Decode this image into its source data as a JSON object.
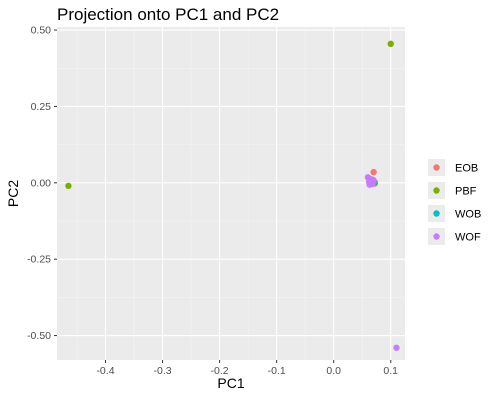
{
  "chart_data": {
    "type": "scatter",
    "title": "Projection onto PC1 and PC2",
    "xlabel": "PC1",
    "ylabel": "PC2",
    "xlim": [
      -0.485,
      0.125
    ],
    "ylim": [
      -0.58,
      0.51
    ],
    "x_ticks": [
      -0.4,
      -0.3,
      -0.2,
      -0.1,
      0.0,
      0.1
    ],
    "x_tick_labels": [
      "-0.4",
      "-0.3",
      "-0.2",
      "-0.1",
      "0.0",
      "0.1"
    ],
    "y_ticks": [
      -0.5,
      -0.25,
      0.0,
      0.25,
      0.5
    ],
    "y_tick_labels": [
      "-0.50",
      "-0.25",
      "0.00",
      "0.25",
      "0.50"
    ],
    "grid": true,
    "legend": {
      "placement": "right"
    },
    "series": [
      {
        "name": "EOB",
        "color": "#F8766D",
        "points": [
          [
            0.07,
            0.035
          ],
          [
            0.068,
            0.01
          ],
          [
            0.072,
            0.002
          ],
          [
            0.065,
            -0.003
          ]
        ]
      },
      {
        "name": "PBF",
        "color": "#7CAE00",
        "points": [
          [
            0.1,
            0.455
          ],
          [
            -0.465,
            -0.01
          ],
          [
            0.068,
            0.0
          ],
          [
            0.072,
            -0.002
          ]
        ]
      },
      {
        "name": "WOB",
        "color": "#00BFC4",
        "points": [
          [
            0.066,
            0.004
          ],
          [
            0.07,
            0.0
          ]
        ]
      },
      {
        "name": "WOF",
        "color": "#C77CFF",
        "points": [
          [
            0.11,
            -0.54
          ],
          [
            0.06,
            0.018
          ],
          [
            0.062,
            0.003
          ],
          [
            0.065,
            0.012
          ],
          [
            0.068,
            -0.004
          ],
          [
            0.07,
            0.008
          ],
          [
            0.063,
            -0.006
          ]
        ]
      }
    ]
  }
}
